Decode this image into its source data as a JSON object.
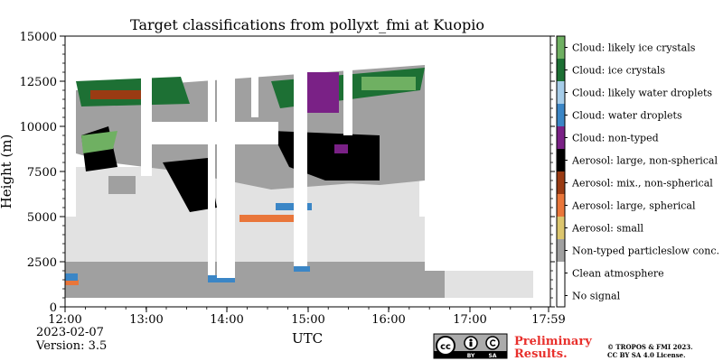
{
  "chart_data": {
    "type": "heatmap",
    "title": "Target classifications from pollyxt_fmi at Kuopio",
    "xlabel": "UTC",
    "ylabel": "Height (m)",
    "x_ticks": [
      "12:00",
      "13:00",
      "14:00",
      "15:00",
      "16:00",
      "17:00",
      "17:59"
    ],
    "y_ticks": [
      "0",
      "2500",
      "5000",
      "7500",
      "10000",
      "12500",
      "15000"
    ],
    "ylim": [
      0,
      15000
    ],
    "grid": false,
    "legend_position": "right colorbar",
    "classes": [
      {
        "label": "No signal",
        "color": "#ffffff"
      },
      {
        "label": "Clean atmosphere",
        "color": "#ffffff"
      },
      {
        "label": "Non-typed particleslow conc.",
        "color": "#a0a0a0"
      },
      {
        "label": "Aerosol: small",
        "color": "#dcc66e"
      },
      {
        "label": "Aerosol: large, spherical",
        "color": "#e9763a"
      },
      {
        "label": "Aerosol: mix., non-spherical",
        "color": "#9a3b13"
      },
      {
        "label": "Aerosol: large, non-spherical",
        "color": "#000000"
      },
      {
        "label": "Cloud: non-typed",
        "color": "#7a2186"
      },
      {
        "label": "Cloud: water droplets",
        "color": "#3b86c6"
      },
      {
        "label": "Cloud: likely water droplets",
        "color": "#a6cde9"
      },
      {
        "label": "Cloud: ice crystals",
        "color": "#1d7034"
      },
      {
        "label": "Cloud: likely ice crystals",
        "color": "#6fb062"
      }
    ]
  },
  "footer": {
    "date": "2023-02-07",
    "version": "Version: 3.5",
    "preliminary_line1": "Preliminary",
    "preliminary_line2": "Results.",
    "copyright_line1": "© TROPOS & FMI 2023.",
    "copyright_line2": "CC BY SA 4.0 License.",
    "cc_logo_text": "cc",
    "cc_by": "BY",
    "cc_sa": "SA"
  }
}
